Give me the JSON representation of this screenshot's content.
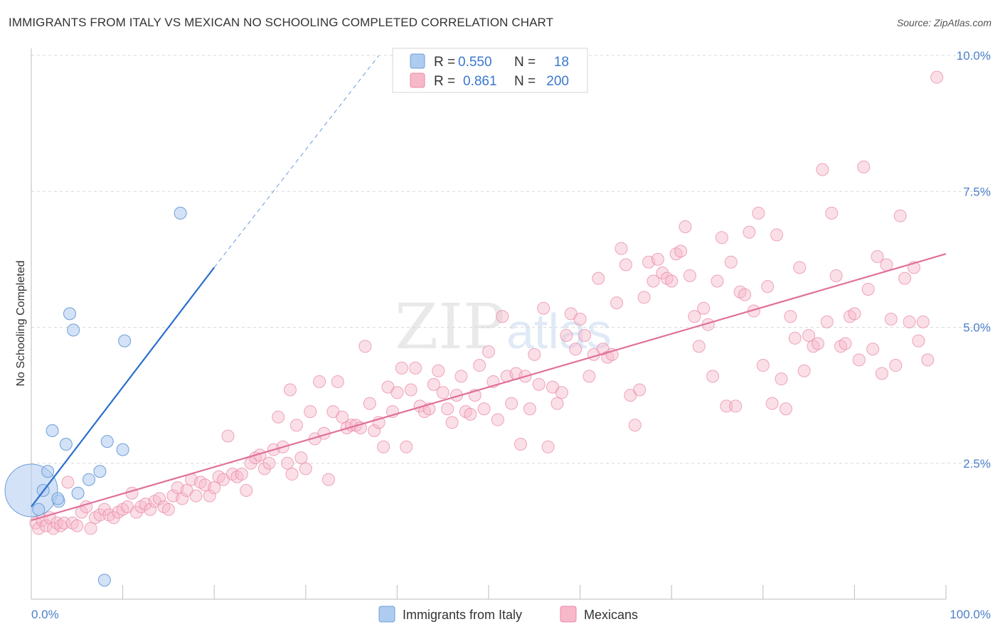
{
  "header": {
    "title": "IMMIGRANTS FROM ITALY VS MEXICAN NO SCHOOLING COMPLETED CORRELATION CHART",
    "source": "Source: ZipAtlas.com"
  },
  "colors": {
    "italy_fill": "#aecbf0",
    "italy_stroke": "#6e9fd8",
    "italy_line": "#2a6fcc",
    "mexicans_fill": "#f7b8ca",
    "mexicans_stroke": "#e88aa8",
    "mexicans_line": "#e0709a",
    "tick_label": "#4a7fc8",
    "grid": "#d9d9d9"
  },
  "legend": {
    "r_label": "R =",
    "n_label": "N =",
    "italy_r": "0.550",
    "italy_n": "18",
    "mexicans_r": "0.861",
    "mexicans_n": "200"
  },
  "watermark": {
    "zip": "ZIP",
    "atlas": "atlas"
  },
  "chart_data": {
    "type": "scatter",
    "title": "IMMIGRANTS FROM ITALY VS MEXICAN NO SCHOOLING COMPLETED CORRELATION CHART",
    "xlabel": "",
    "ylabel": "No Schooling Completed",
    "xlim": [
      0,
      100
    ],
    "ylim": [
      0,
      10
    ],
    "x_tick_labels": [
      "0.0%",
      "100.0%"
    ],
    "y_ticks": [
      2.5,
      5.0,
      7.5,
      10.0
    ],
    "y_tick_labels": [
      "2.5%",
      "5.0%",
      "7.5%",
      "10.0%"
    ],
    "grid": true,
    "legend_position": "top-center",
    "series": [
      {
        "name": "Immigrants from Italy",
        "R": 0.55,
        "N": 18,
        "trend": {
          "x0": 0,
          "y0": 1.7,
          "x1": 20,
          "y1": 6.1,
          "dashed_to_x": 38,
          "dashed_to_y": 10.0
        },
        "points": [
          [
            0.0,
            2.0,
            3
          ],
          [
            1.3,
            2.0,
            1
          ],
          [
            0.8,
            1.65,
            1
          ],
          [
            1.8,
            2.35,
            1
          ],
          [
            2.3,
            3.1,
            1
          ],
          [
            3.0,
            1.8,
            1
          ],
          [
            3.8,
            2.85,
            1
          ],
          [
            4.2,
            5.25,
            1
          ],
          [
            4.6,
            4.95,
            1
          ],
          [
            5.1,
            1.95,
            1
          ],
          [
            6.3,
            2.2,
            1
          ],
          [
            7.5,
            2.35,
            1
          ],
          [
            8.3,
            2.9,
            1
          ],
          [
            8.0,
            0.35,
            1
          ],
          [
            10.0,
            2.75,
            1
          ],
          [
            10.2,
            4.75,
            1
          ],
          [
            16.3,
            7.1,
            1
          ],
          [
            2.9,
            1.85,
            1
          ]
        ]
      },
      {
        "name": "Mexicans",
        "R": 0.861,
        "N": 200,
        "trend": {
          "x0": 0,
          "y0": 1.45,
          "x1": 100,
          "y1": 6.35
        },
        "points": [
          [
            0.5,
            1.4
          ],
          [
            0.8,
            1.3
          ],
          [
            1.2,
            1.45
          ],
          [
            1.6,
            1.35
          ],
          [
            2.0,
            1.5
          ],
          [
            2.4,
            1.3
          ],
          [
            2.8,
            1.4
          ],
          [
            3.2,
            1.35
          ],
          [
            3.6,
            1.4
          ],
          [
            4.0,
            2.15
          ],
          [
            4.5,
            1.4
          ],
          [
            5.0,
            1.35
          ],
          [
            5.5,
            1.6
          ],
          [
            6.0,
            1.7
          ],
          [
            6.5,
            1.3
          ],
          [
            7.0,
            1.5
          ],
          [
            7.5,
            1.55
          ],
          [
            8.0,
            1.65
          ],
          [
            8.5,
            1.55
          ],
          [
            9.0,
            1.5
          ],
          [
            9.5,
            1.6
          ],
          [
            10.0,
            1.65
          ],
          [
            10.5,
            1.7
          ],
          [
            11.0,
            1.95
          ],
          [
            11.5,
            1.6
          ],
          [
            12.0,
            1.7
          ],
          [
            12.5,
            1.75
          ],
          [
            13.0,
            1.65
          ],
          [
            13.5,
            1.8
          ],
          [
            14.0,
            1.85
          ],
          [
            14.5,
            1.7
          ],
          [
            15.0,
            1.65
          ],
          [
            15.5,
            1.9
          ],
          [
            16.0,
            2.05
          ],
          [
            16.5,
            1.85
          ],
          [
            17.0,
            2.0
          ],
          [
            17.5,
            2.2
          ],
          [
            18.0,
            1.9
          ],
          [
            18.5,
            2.15
          ],
          [
            19.0,
            2.1
          ],
          [
            19.5,
            1.9
          ],
          [
            20.0,
            2.05
          ],
          [
            20.5,
            2.25
          ],
          [
            21.0,
            2.2
          ],
          [
            21.5,
            3.0
          ],
          [
            22.0,
            2.3
          ],
          [
            22.5,
            2.25
          ],
          [
            23.0,
            2.3
          ],
          [
            23.5,
            2.0
          ],
          [
            24.0,
            2.5
          ],
          [
            24.5,
            2.6
          ],
          [
            25.0,
            2.65
          ],
          [
            25.5,
            2.4
          ],
          [
            26.0,
            2.5
          ],
          [
            26.5,
            2.75
          ],
          [
            27.0,
            3.35
          ],
          [
            27.5,
            2.8
          ],
          [
            28.0,
            2.5
          ],
          [
            28.5,
            2.3
          ],
          [
            29.0,
            3.2
          ],
          [
            29.5,
            2.6
          ],
          [
            30.0,
            2.4
          ],
          [
            30.5,
            3.45
          ],
          [
            31.0,
            2.95
          ],
          [
            31.5,
            4.0
          ],
          [
            32.0,
            3.05
          ],
          [
            32.5,
            2.2
          ],
          [
            33.0,
            3.45
          ],
          [
            33.5,
            4.0
          ],
          [
            34.0,
            3.35
          ],
          [
            34.5,
            3.15
          ],
          [
            35.0,
            3.2
          ],
          [
            35.5,
            3.2
          ],
          [
            36.0,
            3.15
          ],
          [
            36.5,
            4.65
          ],
          [
            37.0,
            3.6
          ],
          [
            37.5,
            3.1
          ],
          [
            38.0,
            3.25
          ],
          [
            38.5,
            2.8
          ],
          [
            39.0,
            3.9
          ],
          [
            39.5,
            3.45
          ],
          [
            40.0,
            3.8
          ],
          [
            40.5,
            4.25
          ],
          [
            41.0,
            2.8
          ],
          [
            41.5,
            3.85
          ],
          [
            42.0,
            4.25
          ],
          [
            42.5,
            3.55
          ],
          [
            43.0,
            3.45
          ],
          [
            43.5,
            3.5
          ],
          [
            44.0,
            3.95
          ],
          [
            44.5,
            4.2
          ],
          [
            45.0,
            3.8
          ],
          [
            45.5,
            3.5
          ],
          [
            46.0,
            3.25
          ],
          [
            46.5,
            3.75
          ],
          [
            47.0,
            4.1
          ],
          [
            47.5,
            3.45
          ],
          [
            48.0,
            3.4
          ],
          [
            48.5,
            3.75
          ],
          [
            49.0,
            4.3
          ],
          [
            49.5,
            3.5
          ],
          [
            50.0,
            4.55
          ],
          [
            50.5,
            4.0
          ],
          [
            51.0,
            3.3
          ],
          [
            51.5,
            5.2
          ],
          [
            52.0,
            4.1
          ],
          [
            52.5,
            3.6
          ],
          [
            53.0,
            4.15
          ],
          [
            53.5,
            2.85
          ],
          [
            54.0,
            4.1
          ],
          [
            54.5,
            3.5
          ],
          [
            55.0,
            4.5
          ],
          [
            55.5,
            3.95
          ],
          [
            56.0,
            5.35
          ],
          [
            56.5,
            2.8
          ],
          [
            57.0,
            3.9
          ],
          [
            57.5,
            3.6
          ],
          [
            58.0,
            3.8
          ],
          [
            58.5,
            4.85
          ],
          [
            59.0,
            5.25
          ],
          [
            59.5,
            4.6
          ],
          [
            60.0,
            5.15
          ],
          [
            60.5,
            4.85
          ],
          [
            61.0,
            4.1
          ],
          [
            61.5,
            4.5
          ],
          [
            62.0,
            5.9
          ],
          [
            62.5,
            4.6
          ],
          [
            63.0,
            4.45
          ],
          [
            63.5,
            4.5
          ],
          [
            64.0,
            5.45
          ],
          [
            64.5,
            6.45
          ],
          [
            65.0,
            6.15
          ],
          [
            65.5,
            3.75
          ],
          [
            66.0,
            3.2
          ],
          [
            66.5,
            3.85
          ],
          [
            67.0,
            5.55
          ],
          [
            67.5,
            6.2
          ],
          [
            68.0,
            5.85
          ],
          [
            68.5,
            6.25
          ],
          [
            69.0,
            6.0
          ],
          [
            69.5,
            5.9
          ],
          [
            70.0,
            5.85
          ],
          [
            70.5,
            6.35
          ],
          [
            71.0,
            6.4
          ],
          [
            71.5,
            6.85
          ],
          [
            72.0,
            5.95
          ],
          [
            72.5,
            5.2
          ],
          [
            73.0,
            4.65
          ],
          [
            73.5,
            5.35
          ],
          [
            74.0,
            5.05
          ],
          [
            74.5,
            4.1
          ],
          [
            75.0,
            5.85
          ],
          [
            75.5,
            6.65
          ],
          [
            76.0,
            3.55
          ],
          [
            76.5,
            6.2
          ],
          [
            77.0,
            3.55
          ],
          [
            77.5,
            5.65
          ],
          [
            78.0,
            5.6
          ],
          [
            78.5,
            6.75
          ],
          [
            79.0,
            5.3
          ],
          [
            79.5,
            7.1
          ],
          [
            80.0,
            4.3
          ],
          [
            80.5,
            5.75
          ],
          [
            81.0,
            3.6
          ],
          [
            81.5,
            6.7
          ],
          [
            82.0,
            4.05
          ],
          [
            82.5,
            3.5
          ],
          [
            83.0,
            5.2
          ],
          [
            83.5,
            4.8
          ],
          [
            84.0,
            6.1
          ],
          [
            84.5,
            4.2
          ],
          [
            85.0,
            4.85
          ],
          [
            85.5,
            4.65
          ],
          [
            86.0,
            4.7
          ],
          [
            86.5,
            7.9
          ],
          [
            87.0,
            5.1
          ],
          [
            87.5,
            7.1
          ],
          [
            88.0,
            5.95
          ],
          [
            88.5,
            4.65
          ],
          [
            89.0,
            4.7
          ],
          [
            89.5,
            5.2
          ],
          [
            90.0,
            5.25
          ],
          [
            90.5,
            4.4
          ],
          [
            91.0,
            7.95
          ],
          [
            91.5,
            5.7
          ],
          [
            92.0,
            4.6
          ],
          [
            92.5,
            6.3
          ],
          [
            93.0,
            4.15
          ],
          [
            93.5,
            6.15
          ],
          [
            94.0,
            5.15
          ],
          [
            94.5,
            4.3
          ],
          [
            95.0,
            7.05
          ],
          [
            95.5,
            5.9
          ],
          [
            96.0,
            5.1
          ],
          [
            96.5,
            6.1
          ],
          [
            97.0,
            4.75
          ],
          [
            97.5,
            5.1
          ],
          [
            98.0,
            4.4
          ],
          [
            99.0,
            9.6
          ],
          [
            28.3,
            3.85
          ]
        ]
      }
    ]
  },
  "bottom_legend": {
    "italy_label": "Immigrants from Italy",
    "mexicans_label": "Mexicans"
  }
}
